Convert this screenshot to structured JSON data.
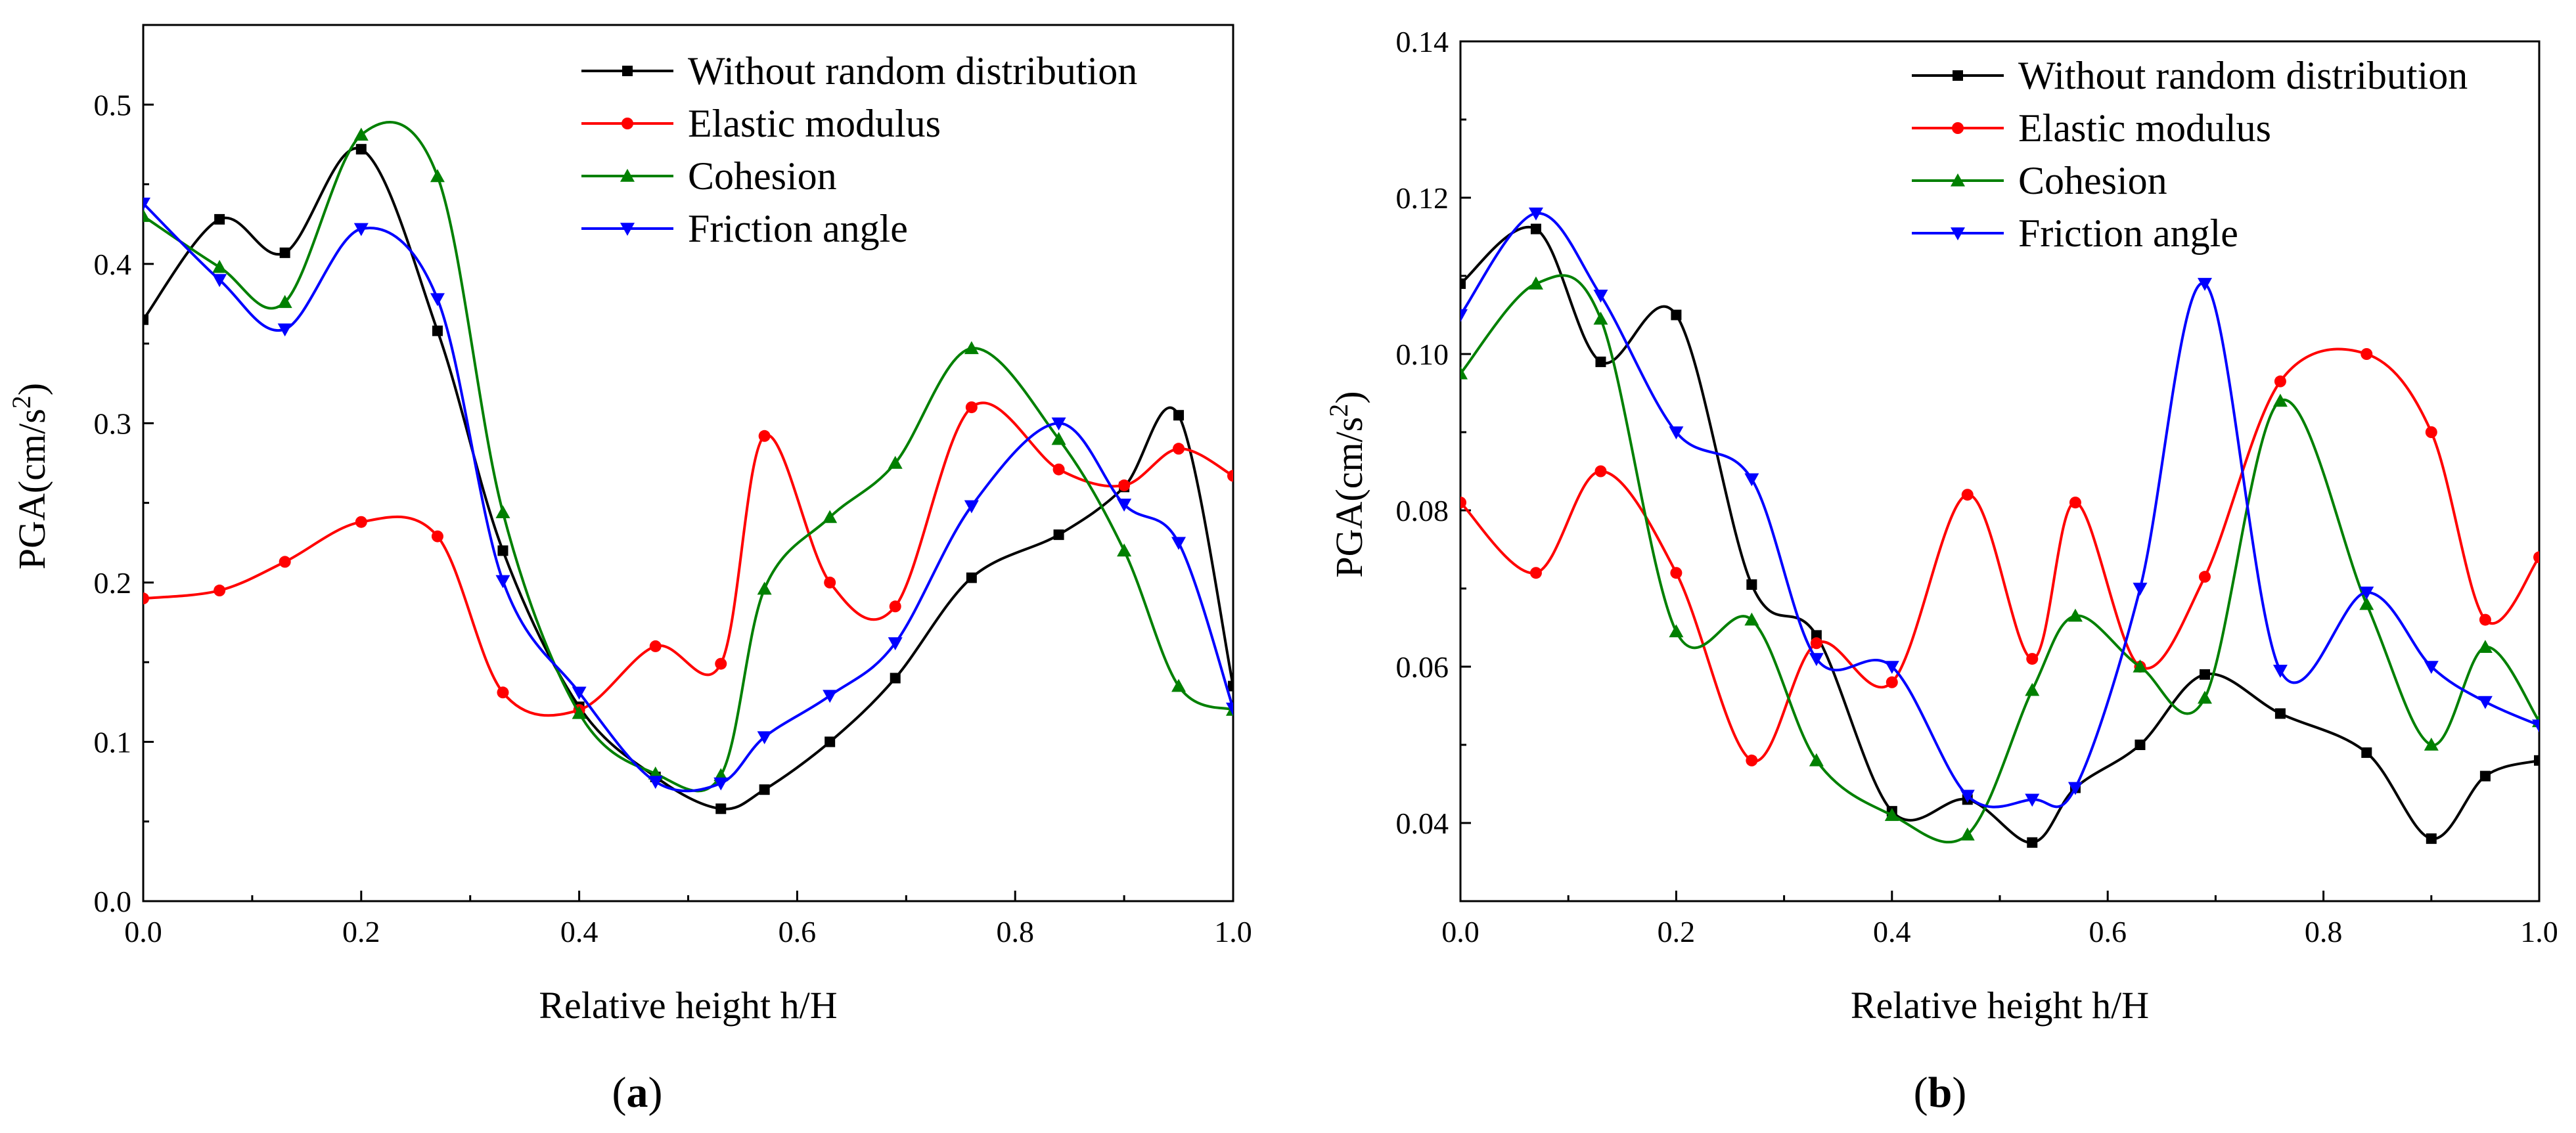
{
  "chart_data": [
    {
      "type": "line",
      "panel_label": "a",
      "xlabel": "Relative height h/H",
      "ylabel": "PGA(cm/s²)",
      "ylabel_base": "PGA(cm/s",
      "ylabel_sup": "2",
      "ylabel_close": ")",
      "xlim": [
        0,
        1
      ],
      "ylim": [
        0,
        0.55
      ],
      "xticks": [
        "0.0",
        "0.2",
        "0.4",
        "0.6",
        "0.8",
        "1.0"
      ],
      "yticks": [
        "0.0",
        "0.1",
        "0.2",
        "0.3",
        "0.4",
        "0.5"
      ],
      "grid": false,
      "legend_position": "top-right",
      "series": [
        {
          "name": "Without random distribution",
          "color": "#000000",
          "marker": "square",
          "x": [
            0.0,
            0.07,
            0.13,
            0.2,
            0.27,
            0.33,
            0.4,
            0.47,
            0.53,
            0.57,
            0.63,
            0.69,
            0.76,
            0.84,
            0.9,
            0.95,
            1.0
          ],
          "y": [
            0.365,
            0.428,
            0.407,
            0.472,
            0.358,
            0.22,
            0.122,
            0.078,
            0.058,
            0.07,
            0.1,
            0.14,
            0.203,
            0.23,
            0.26,
            0.305,
            0.135
          ]
        },
        {
          "name": "Elastic modulus",
          "color": "#ff0000",
          "marker": "circle",
          "x": [
            0.0,
            0.07,
            0.13,
            0.2,
            0.27,
            0.33,
            0.4,
            0.47,
            0.53,
            0.57,
            0.63,
            0.69,
            0.76,
            0.84,
            0.9,
            0.95,
            1.0
          ],
          "y": [
            0.19,
            0.195,
            0.213,
            0.238,
            0.229,
            0.131,
            0.12,
            0.16,
            0.149,
            0.292,
            0.2,
            0.185,
            0.31,
            0.271,
            0.261,
            0.284,
            0.267
          ]
        },
        {
          "name": "Cohesion",
          "color": "#008000",
          "marker": "triangle-up",
          "x": [
            0.0,
            0.07,
            0.13,
            0.2,
            0.27,
            0.33,
            0.4,
            0.47,
            0.53,
            0.57,
            0.63,
            0.69,
            0.76,
            0.84,
            0.9,
            0.95,
            1.0
          ],
          "y": [
            0.43,
            0.398,
            0.376,
            0.481,
            0.455,
            0.244,
            0.118,
            0.08,
            0.079,
            0.196,
            0.241,
            0.275,
            0.347,
            0.29,
            0.22,
            0.135,
            0.12
          ]
        },
        {
          "name": "Friction angle",
          "color": "#0000ff",
          "marker": "triangle-down",
          "x": [
            0.0,
            0.07,
            0.13,
            0.2,
            0.27,
            0.33,
            0.4,
            0.47,
            0.53,
            0.57,
            0.63,
            0.69,
            0.76,
            0.84,
            0.9,
            0.95,
            1.0
          ],
          "y": [
            0.438,
            0.39,
            0.359,
            0.422,
            0.378,
            0.201,
            0.131,
            0.075,
            0.074,
            0.103,
            0.129,
            0.162,
            0.248,
            0.3,
            0.249,
            0.225,
            0.121
          ]
        }
      ]
    },
    {
      "type": "line",
      "panel_label": "b",
      "xlabel": "Relative height h/H",
      "ylabel": "PGA(cm/s²)",
      "ylabel_base": "PGA(cm/s",
      "ylabel_sup": "2",
      "ylabel_close": ")",
      "xlim": [
        0,
        1
      ],
      "ylim": [
        0.03,
        0.14
      ],
      "xticks": [
        "0.0",
        "0.2",
        "0.4",
        "0.6",
        "0.8",
        "1.0"
      ],
      "yticks": [
        "0.04",
        "0.06",
        "0.08",
        "0.10",
        "0.12",
        "0.14"
      ],
      "grid": false,
      "legend_position": "top-right",
      "series": [
        {
          "name": "Without random distribution",
          "color": "#000000",
          "marker": "square",
          "x": [
            0.0,
            0.07,
            0.13,
            0.2,
            0.27,
            0.33,
            0.4,
            0.47,
            0.53,
            0.57,
            0.63,
            0.69,
            0.76,
            0.84,
            0.9,
            0.95,
            1.0
          ],
          "y": [
            0.109,
            0.116,
            0.099,
            0.105,
            0.0705,
            0.064,
            0.0415,
            0.043,
            0.0375,
            0.0445,
            0.05,
            0.059,
            0.054,
            0.049,
            0.038,
            0.046,
            0.048
          ]
        },
        {
          "name": "Elastic modulus",
          "color": "#ff0000",
          "marker": "circle",
          "x": [
            0.0,
            0.07,
            0.13,
            0.2,
            0.27,
            0.33,
            0.4,
            0.47,
            0.53,
            0.57,
            0.63,
            0.69,
            0.76,
            0.84,
            0.9,
            0.95,
            1.0
          ],
          "y": [
            0.081,
            0.072,
            0.085,
            0.072,
            0.048,
            0.063,
            0.058,
            0.082,
            0.061,
            0.081,
            0.06,
            0.0715,
            0.0965,
            0.1,
            0.09,
            0.066,
            0.074
          ]
        },
        {
          "name": "Cohesion",
          "color": "#008000",
          "marker": "triangle-up",
          "x": [
            0.0,
            0.07,
            0.13,
            0.2,
            0.27,
            0.33,
            0.4,
            0.47,
            0.53,
            0.57,
            0.63,
            0.69,
            0.76,
            0.84,
            0.9,
            0.95,
            1.0
          ],
          "y": [
            0.0975,
            0.109,
            0.1045,
            0.0645,
            0.066,
            0.048,
            0.041,
            0.0385,
            0.057,
            0.0665,
            0.06,
            0.056,
            0.094,
            0.068,
            0.05,
            0.0625,
            0.053
          ]
        },
        {
          "name": "Friction angle",
          "color": "#0000ff",
          "marker": "triangle-down",
          "x": [
            0.0,
            0.07,
            0.13,
            0.2,
            0.27,
            0.33,
            0.4,
            0.47,
            0.53,
            0.57,
            0.63,
            0.69,
            0.76,
            0.84,
            0.9,
            0.95,
            1.0
          ],
          "y": [
            0.105,
            0.118,
            0.1075,
            0.09,
            0.084,
            0.061,
            0.06,
            0.0435,
            0.043,
            0.0445,
            0.07,
            0.109,
            0.0595,
            0.0695,
            0.06,
            0.0555,
            0.0525
          ]
        }
      ]
    }
  ]
}
